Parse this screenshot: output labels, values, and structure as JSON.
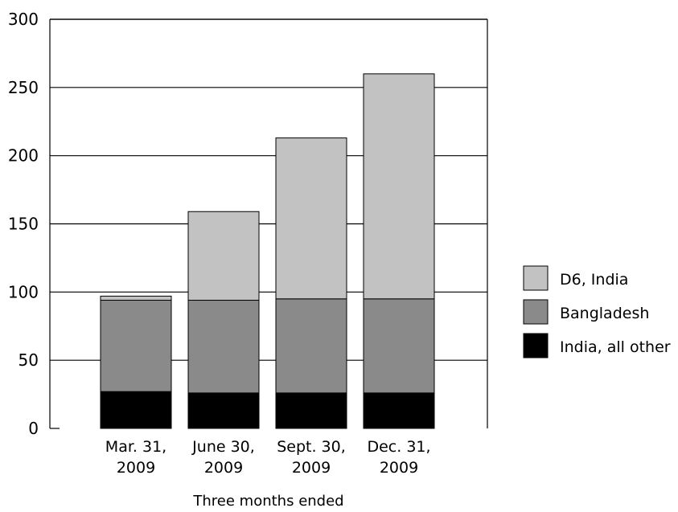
{
  "chart_data": {
    "type": "bar",
    "stacked": true,
    "title": "",
    "xlabel": "Three months ended",
    "ylabel": "",
    "ylim": [
      0,
      300
    ],
    "yticks": [
      0,
      50,
      100,
      150,
      200,
      250,
      300
    ],
    "grid": true,
    "legend_position": "right",
    "categories": [
      [
        "Mar. 31,",
        "2009"
      ],
      [
        "June 30,",
        "2009"
      ],
      [
        "Sept. 30,",
        "2009"
      ],
      [
        "Dec. 31,",
        "2009"
      ]
    ],
    "series": [
      {
        "name": "India, all other",
        "color": "#000000",
        "values": [
          27,
          26,
          26,
          26
        ]
      },
      {
        "name": "Bangladesh",
        "color": "#8a8a8a",
        "values": [
          67,
          68,
          69,
          69
        ]
      },
      {
        "name": "D6, India",
        "color": "#c2c2c2",
        "values": [
          3,
          65,
          118,
          165
        ]
      }
    ],
    "legend_order": [
      "D6, India",
      "Bangladesh",
      "India, all other"
    ]
  }
}
